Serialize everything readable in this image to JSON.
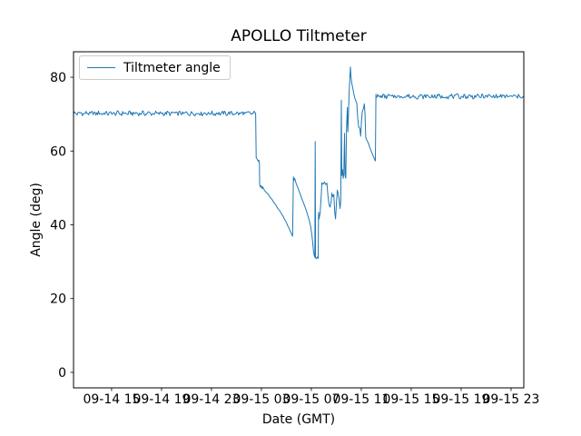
{
  "chart_data": {
    "type": "line",
    "title": "APOLLO Tiltmeter",
    "xlabel": "Date (GMT)",
    "ylabel": "Angle (deg)",
    "legend_label": "Tiltmeter angle",
    "legend_position": "upper left",
    "line_color": "#1f77b4",
    "axis_color": "#000000",
    "background_color": "#ffffff",
    "grid": false,
    "x_unit": "hours since 09-14 15:00 GMT",
    "x_range": [
      -3.05,
      33.02
    ],
    "y_range": [
      -4.2,
      86.9
    ],
    "y_ticks": [
      0,
      20,
      40,
      60,
      80
    ],
    "x_ticks": [
      {
        "t": 0,
        "label": "09-14 15"
      },
      {
        "t": 4,
        "label": "09-14 19"
      },
      {
        "t": 8,
        "label": "09-14 23"
      },
      {
        "t": 12,
        "label": "09-15 03"
      },
      {
        "t": 16,
        "label": "09-15 07"
      },
      {
        "t": 20,
        "label": "09-15 11"
      },
      {
        "t": 24,
        "label": "09-15 15"
      },
      {
        "t": 28,
        "label": "09-15 19"
      },
      {
        "t": 32,
        "label": "09-15 23"
      }
    ],
    "series": [
      {
        "name": "Tiltmeter angle",
        "segments": [
          {
            "type": "noisy",
            "t0": -3.05,
            "t1": 11.54,
            "value": 70.2,
            "amplitude": 0.65,
            "seed": 1
          },
          {
            "type": "path",
            "points": [
              [
                11.54,
                70.2
              ],
              [
                11.58,
                58.2
              ],
              [
                11.66,
                57.8
              ],
              [
                11.74,
                57.2
              ],
              [
                11.8,
                57.5
              ],
              [
                11.84,
                56.5
              ],
              [
                11.86,
                51.0
              ],
              [
                11.92,
                50.2
              ],
              [
                11.98,
                50.6
              ],
              [
                12.06,
                49.8
              ],
              [
                12.1,
                50.3
              ],
              [
                12.25,
                49.3
              ],
              [
                12.4,
                48.7
              ],
              [
                12.55,
                48.3
              ],
              [
                12.7,
                47.4
              ],
              [
                12.85,
                46.9
              ],
              [
                13.0,
                46.0
              ],
              [
                13.15,
                45.4
              ],
              [
                13.3,
                44.5
              ],
              [
                13.45,
                43.9
              ],
              [
                13.6,
                43.0
              ],
              [
                13.75,
                42.2
              ],
              [
                13.9,
                41.2
              ],
              [
                14.0,
                40.6
              ],
              [
                14.1,
                39.8
              ],
              [
                14.2,
                39.2
              ],
              [
                14.3,
                38.3
              ],
              [
                14.4,
                37.6
              ],
              [
                14.5,
                36.9
              ],
              [
                14.56,
                53.0
              ],
              [
                14.6,
                52.0
              ],
              [
                14.66,
                52.6
              ],
              [
                14.8,
                51.0
              ],
              [
                14.95,
                49.8
              ],
              [
                15.1,
                48.4
              ],
              [
                15.25,
                47.0
              ],
              [
                15.4,
                45.7
              ],
              [
                15.55,
                44.3
              ],
              [
                15.7,
                42.7
              ],
              [
                15.85,
                41.0
              ],
              [
                15.95,
                39.4
              ],
              [
                16.05,
                37.2
              ],
              [
                16.12,
                34.8
              ],
              [
                16.18,
                32.6
              ],
              [
                16.24,
                31.6
              ],
              [
                16.28,
                31.2
              ],
              [
                16.31,
                62.6
              ],
              [
                16.34,
                31.0
              ],
              [
                16.4,
                30.8
              ],
              [
                16.48,
                31.3
              ],
              [
                16.55,
                30.9
              ],
              [
                16.58,
                43.4
              ],
              [
                16.62,
                41.6
              ],
              [
                16.7,
                43.2
              ],
              [
                16.78,
                47.2
              ],
              [
                16.85,
                51.4
              ],
              [
                16.95,
                51.0
              ],
              [
                17.05,
                51.6
              ],
              [
                17.15,
                50.9
              ],
              [
                17.25,
                51.3
              ],
              [
                17.33,
                48.0
              ],
              [
                17.42,
                45.4
              ],
              [
                17.5,
                44.8
              ],
              [
                17.58,
                46.2
              ],
              [
                17.65,
                48.6
              ],
              [
                17.72,
                47.6
              ],
              [
                17.8,
                48.2
              ],
              [
                17.88,
                43.2
              ],
              [
                17.94,
                41.6
              ],
              [
                18.02,
                46.2
              ],
              [
                18.08,
                49.4
              ],
              [
                18.16,
                48.2
              ],
              [
                18.22,
                47.0
              ],
              [
                18.3,
                44.4
              ],
              [
                18.36,
                46.8
              ],
              [
                18.4,
                73.8
              ],
              [
                18.44,
                53.4
              ],
              [
                18.5,
                55.0
              ],
              [
                18.55,
                52.6
              ],
              [
                18.6,
                53.6
              ],
              [
                18.66,
                64.8
              ],
              [
                18.7,
                53.4
              ],
              [
                18.76,
                52.6
              ],
              [
                18.82,
                66.0
              ],
              [
                18.88,
                71.8
              ],
              [
                18.93,
                65.2
              ],
              [
                18.98,
                70.2
              ],
              [
                19.03,
                76.2
              ],
              [
                19.08,
                79.2
              ],
              [
                19.13,
                82.8
              ],
              [
                19.18,
                80.0
              ],
              [
                19.24,
                78.4
              ],
              [
                19.32,
                77.0
              ],
              [
                19.4,
                75.6
              ],
              [
                19.48,
                74.4
              ],
              [
                19.56,
                73.6
              ],
              [
                19.64,
                73.0
              ],
              [
                19.72,
                68.8
              ],
              [
                19.8,
                66.4
              ],
              [
                19.88,
                66.2
              ],
              [
                19.95,
                64.0
              ],
              [
                20.02,
                68.2
              ],
              [
                20.08,
                70.8
              ],
              [
                20.16,
                71.4
              ],
              [
                20.24,
                72.8
              ],
              [
                20.3,
                70.0
              ],
              [
                20.36,
                63.6
              ],
              [
                20.46,
                62.8
              ],
              [
                20.56,
                62.2
              ],
              [
                20.66,
                61.2
              ],
              [
                20.76,
                60.3
              ],
              [
                20.86,
                59.4
              ],
              [
                20.96,
                58.6
              ],
              [
                21.06,
                57.8
              ],
              [
                21.13,
                57.3
              ],
              [
                21.17,
                75.4
              ]
            ]
          },
          {
            "type": "noisy",
            "t0": 21.17,
            "t1": 33.02,
            "value": 74.8,
            "amplitude": 0.65,
            "seed": 7
          }
        ]
      }
    ]
  }
}
